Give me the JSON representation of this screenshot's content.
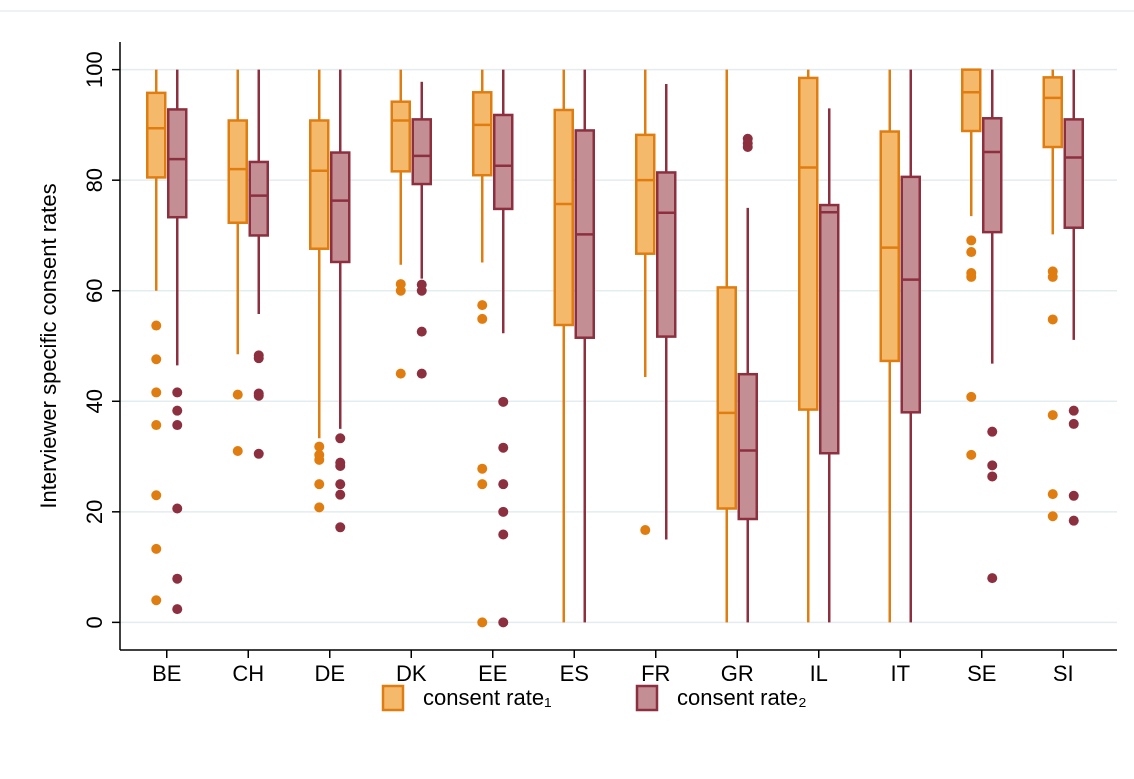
{
  "chart_data": {
    "type": "box",
    "y_label": "Interviewer specific consent rates",
    "categories": [
      "BE",
      "CH",
      "DE",
      "DK",
      "EE",
      "ES",
      "FR",
      "GR",
      "IL",
      "IT",
      "SE",
      "SI"
    ],
    "ylim": [
      -5,
      105
    ],
    "yticks": [
      0,
      20,
      40,
      60,
      80,
      100
    ],
    "grid": true,
    "series": [
      {
        "name": "consent rate₁",
        "color": "#e07d10",
        "fill": "#f5b96c",
        "low": [
          60,
          48.5,
          33.3,
          64.7,
          65.1,
          0,
          44.4,
          0,
          0,
          0,
          73.5,
          70.2
        ],
        "q1": [
          80.5,
          72.3,
          67.6,
          81.6,
          80.9,
          53.8,
          66.7,
          20.6,
          38.5,
          47.3,
          88.9,
          86
        ],
        "median": [
          89.4,
          82,
          81.7,
          90.8,
          90,
          75.7,
          80,
          37.9,
          82.3,
          67.8,
          95.9,
          94.9
        ],
        "q3": [
          95.8,
          90.8,
          90.8,
          94.2,
          95.9,
          92.7,
          88.2,
          60.6,
          98.5,
          88.8,
          100,
          98.6
        ],
        "high": [
          100,
          100,
          100,
          100,
          100,
          100,
          100,
          100,
          100,
          100,
          100,
          100
        ],
        "outliers": [
          [
            53.7,
            47.6,
            41.6,
            35.7,
            23,
            13.3,
            4
          ],
          [
            41.2,
            31
          ],
          [
            31.8,
            30.3,
            29.4,
            25,
            20.8
          ],
          [
            61.2,
            60,
            45
          ],
          [
            57.4,
            54.9,
            27.8,
            25,
            0
          ],
          [],
          [
            16.7
          ],
          [],
          [],
          [],
          [
            69.1,
            67,
            63.2,
            62.5,
            40.8,
            30.3
          ],
          [
            63.5,
            62.5,
            54.8,
            37.5,
            23.2,
            19.2
          ]
        ]
      },
      {
        "name": "consent rate₂",
        "color": "#8c2f3e",
        "fill": "#c38f95",
        "low": [
          46.5,
          55.8,
          35,
          62.2,
          52.3,
          0,
          15,
          0,
          0,
          0,
          46.8,
          51.1
        ],
        "q1": [
          73.3,
          70,
          65.2,
          79.3,
          74.8,
          51.5,
          51.7,
          18.7,
          30.6,
          38,
          70.6,
          71.4
        ],
        "median": [
          83.8,
          77.2,
          76.3,
          84.4,
          82.6,
          70.2,
          74.1,
          31.1,
          74.2,
          62,
          85.1,
          84.1
        ],
        "q3": [
          92.8,
          83.3,
          85,
          91,
          91.8,
          89,
          81.4,
          44.9,
          75.5,
          80.6,
          91.2,
          91
        ],
        "high": [
          100,
          100,
          100,
          97.8,
          100,
          100,
          97.4,
          75,
          93,
          100,
          100,
          100
        ],
        "outliers": [
          [
            41.6,
            38.3,
            35.7,
            20.6,
            7.9,
            2.4
          ],
          [
            48.3,
            47.8,
            41.4,
            41,
            30.5
          ],
          [
            33.3,
            28.9,
            28.3,
            25,
            23.1,
            17.2
          ],
          [
            61.1,
            60,
            52.6,
            45
          ],
          [
            39.9,
            31.6,
            25,
            20,
            15.9,
            0
          ],
          [],
          [],
          [
            87.5,
            86.7,
            86
          ],
          [],
          [],
          [
            34.5,
            28.4,
            26.4,
            8
          ],
          [
            38.3,
            35.9,
            22.9,
            18.4
          ]
        ]
      }
    ]
  }
}
